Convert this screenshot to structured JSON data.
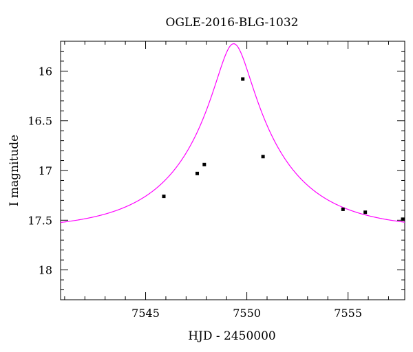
{
  "chart_data": {
    "type": "scatter",
    "title": "OGLE-2016-BLG-1032",
    "xlabel": "HJD - 2450000",
    "ylabel": "I magnitude",
    "xlim": [
      7540.8,
      7557.8
    ],
    "ylim": [
      18.3,
      15.7
    ],
    "y_inverted": true,
    "grid": false,
    "x_ticks": [
      7545,
      7550,
      7555
    ],
    "y_ticks": [
      16,
      16.5,
      17,
      17.5,
      18
    ],
    "y_tick_labels": [
      "16",
      "16.5",
      "17",
      "17.5",
      "18"
    ],
    "series": [
      {
        "kind": "points",
        "color": "#000000",
        "x": [
          7545.9,
          7547.55,
          7547.9,
          7549.8,
          7550.8,
          7554.75,
          7555.85,
          7557.7
        ],
        "y": [
          17.26,
          17.03,
          16.94,
          16.08,
          16.86,
          17.39,
          17.42,
          17.49
        ]
      },
      {
        "kind": "model",
        "color": "#ff00ff",
        "params": {
          "t0": 7549.35,
          "u0": 0.18,
          "tE": 4.6,
          "baseline": 17.6
        }
      }
    ]
  }
}
